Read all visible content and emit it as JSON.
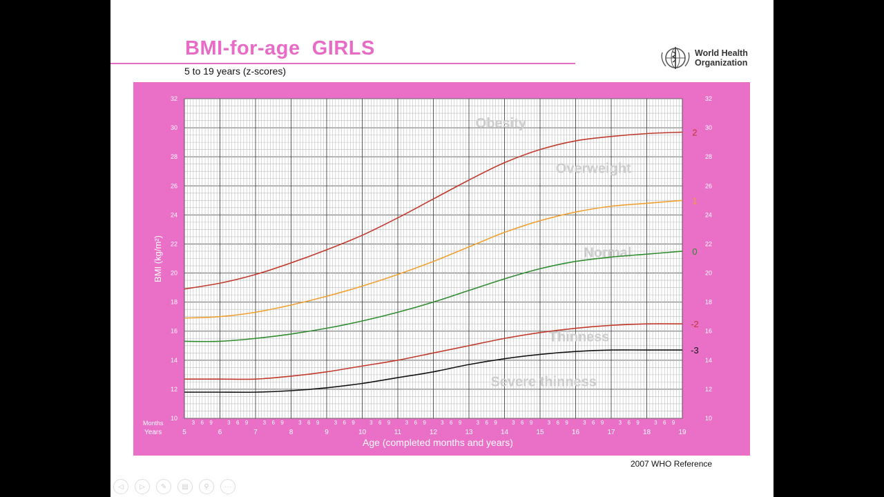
{
  "slide": {
    "title": "BMI-for-age  GIRLS",
    "subtitle": "5 to 19 years (z-scores)",
    "organization_line1": "World Health",
    "organization_line2": "Organization",
    "reference": "2007 WHO Reference"
  },
  "toolbar": {
    "buttons": [
      {
        "name": "previous-slide-button",
        "icon": "arrow-left-icon",
        "glyph": "◁"
      },
      {
        "name": "next-slide-button",
        "icon": "arrow-right-icon",
        "glyph": "▷"
      },
      {
        "name": "pen-button",
        "icon": "pen-icon",
        "glyph": "✎"
      },
      {
        "name": "slides-button",
        "icon": "slides-icon",
        "glyph": "▤"
      },
      {
        "name": "zoom-button",
        "icon": "magnifier-icon",
        "glyph": "⚲"
      },
      {
        "name": "more-button",
        "icon": "ellipsis-icon",
        "glyph": "···"
      }
    ]
  },
  "colors": {
    "panel": "#ea6fc7",
    "title": "#e86cc6",
    "z2": "#c0392b",
    "z1": "#f0a030",
    "z0": "#2e8b2e",
    "zm2": "#c0392b",
    "zm3": "#111111",
    "zone_label": "#cccccc"
  },
  "chart_data": {
    "type": "line",
    "title": "BMI-for-age  GIRLS",
    "subtitle": "5 to 19 years (z-scores)",
    "xlabel": "Age (completed months and years)",
    "ylabel": "BMI (kg/m²)",
    "xlim": [
      5,
      19
    ],
    "ylim": [
      10,
      32
    ],
    "y_ticks": [
      10,
      12,
      14,
      16,
      18,
      20,
      22,
      24,
      26,
      28,
      30,
      32
    ],
    "x_year_ticks": [
      5,
      6,
      7,
      8,
      9,
      10,
      11,
      12,
      13,
      14,
      15,
      16,
      17,
      18,
      19
    ],
    "x_row_labels": {
      "months": "Months",
      "years": "Years"
    },
    "month_tick_labels": [
      "3",
      "6",
      "9"
    ],
    "grid": true,
    "series": [
      {
        "name": "2",
        "color_key": "z2",
        "x": [
          5,
          6,
          7,
          8,
          9,
          10,
          11,
          12,
          13,
          14,
          15,
          16,
          17,
          18,
          19
        ],
        "values": [
          18.9,
          19.3,
          19.9,
          20.7,
          21.6,
          22.6,
          23.8,
          25.1,
          26.4,
          27.6,
          28.5,
          29.1,
          29.4,
          29.6,
          29.7
        ]
      },
      {
        "name": "1",
        "color_key": "z1",
        "x": [
          5,
          6,
          7,
          8,
          9,
          10,
          11,
          12,
          13,
          14,
          15,
          16,
          17,
          18,
          19
        ],
        "values": [
          16.9,
          17.0,
          17.3,
          17.8,
          18.4,
          19.1,
          19.9,
          20.8,
          21.8,
          22.8,
          23.6,
          24.2,
          24.6,
          24.8,
          25.0
        ]
      },
      {
        "name": "0",
        "color_key": "z0",
        "x": [
          5,
          6,
          7,
          8,
          9,
          10,
          11,
          12,
          13,
          14,
          15,
          16,
          17,
          18,
          19
        ],
        "values": [
          15.3,
          15.3,
          15.5,
          15.8,
          16.2,
          16.7,
          17.3,
          18.0,
          18.8,
          19.6,
          20.3,
          20.8,
          21.1,
          21.3,
          21.5
        ]
      },
      {
        "name": "-2",
        "color_key": "zm2",
        "x": [
          5,
          6,
          7,
          8,
          9,
          10,
          11,
          12,
          13,
          14,
          15,
          16,
          17,
          18,
          19
        ],
        "values": [
          12.7,
          12.7,
          12.7,
          12.9,
          13.2,
          13.6,
          14.0,
          14.5,
          15.0,
          15.5,
          15.9,
          16.2,
          16.4,
          16.5,
          16.5
        ]
      },
      {
        "name": "-3",
        "color_key": "zm3",
        "x": [
          5,
          6,
          7,
          8,
          9,
          10,
          11,
          12,
          13,
          14,
          15,
          16,
          17,
          18,
          19
        ],
        "values": [
          11.8,
          11.8,
          11.8,
          11.9,
          12.1,
          12.4,
          12.8,
          13.2,
          13.7,
          14.1,
          14.4,
          14.6,
          14.7,
          14.7,
          14.7
        ]
      }
    ],
    "annotations": [
      {
        "text": "Obesity",
        "x": 13.9,
        "y": 30.0
      },
      {
        "text": "Overweight",
        "x": 16.5,
        "y": 26.9
      },
      {
        "text": "Normal",
        "x": 16.9,
        "y": 21.1
      },
      {
        "text": "Thinness",
        "x": 16.1,
        "y": 15.3
      },
      {
        "text": "Severe thinness",
        "x": 15.1,
        "y": 12.2
      }
    ]
  }
}
